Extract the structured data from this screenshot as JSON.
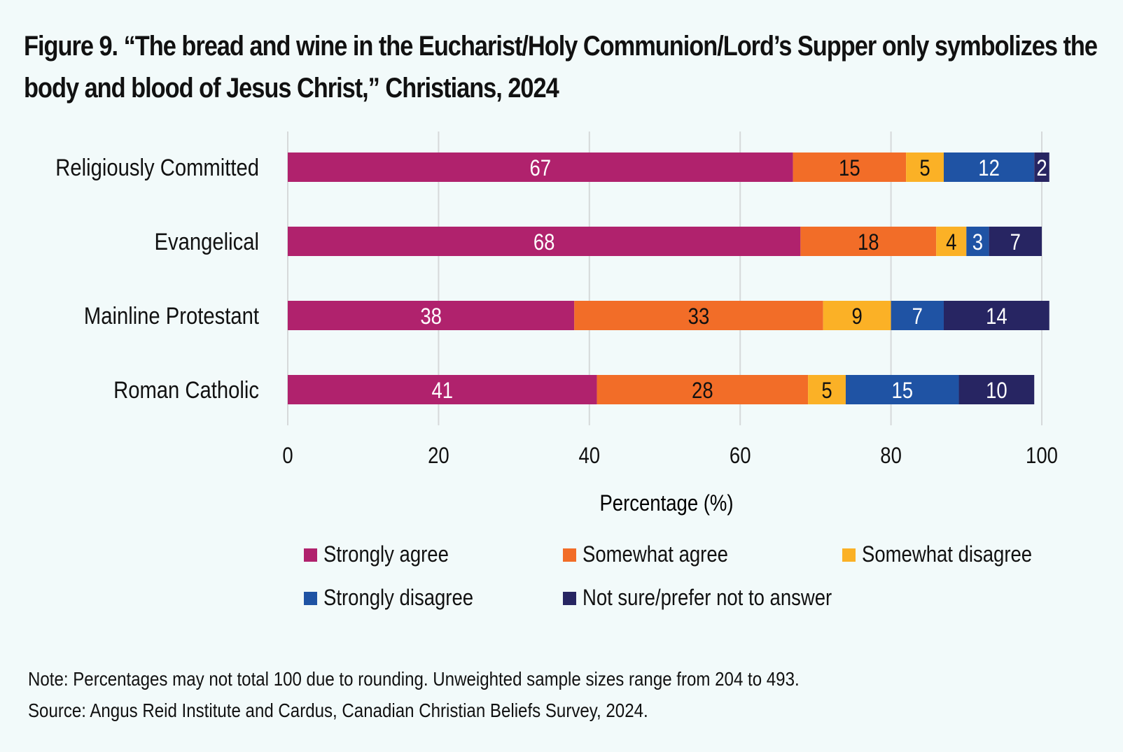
{
  "title": "Figure 9. “The bread and wine in the Eucharist/Holy Communion/Lord’s Supper only symbolizes the body and blood of Jesus Christ,” Christians, 2024",
  "note": "Note: Percentages may not total 100 due to rounding. Unweighted sample sizes range from 204 to 493.",
  "source": "Source: Angus Reid Institute and Cardus, Canadian Christian Beliefs Survey, 2024.",
  "chart_data": {
    "type": "bar",
    "orientation": "horizontal",
    "stacked": true,
    "title": "Figure 9. “The bread and wine in the Eucharist/Holy Communion/Lord’s Supper only symbolizes the body and blood of Jesus Christ,” Christians, 2024",
    "categories": [
      "Religiously Committed",
      "Evangelical",
      "Mainline Protestant",
      "Roman Catholic"
    ],
    "series": [
      {
        "name": "Strongly agree",
        "color": "#b0226d",
        "label_color": "#ffffff",
        "values": [
          67,
          68,
          38,
          41
        ]
      },
      {
        "name": "Somewhat agree",
        "color": "#f26d28",
        "label_color": "#111111",
        "values": [
          15,
          18,
          33,
          28
        ]
      },
      {
        "name": "Somewhat disagree",
        "color": "#fbb126",
        "label_color": "#111111",
        "values": [
          5,
          4,
          9,
          5
        ]
      },
      {
        "name": "Strongly disagree",
        "color": "#1f53a4",
        "label_color": "#ffffff",
        "values": [
          12,
          3,
          7,
          15
        ]
      },
      {
        "name": "Not sure/prefer not to answer",
        "color": "#272562",
        "label_color": "#ffffff",
        "values": [
          2,
          7,
          14,
          10
        ]
      }
    ],
    "xlabel": "Percentage (%)",
    "ylabel": "",
    "xlim": [
      0,
      100
    ],
    "xticks": [
      0,
      20,
      40,
      60,
      80,
      100
    ],
    "grid": true,
    "legend_position": "bottom"
  }
}
